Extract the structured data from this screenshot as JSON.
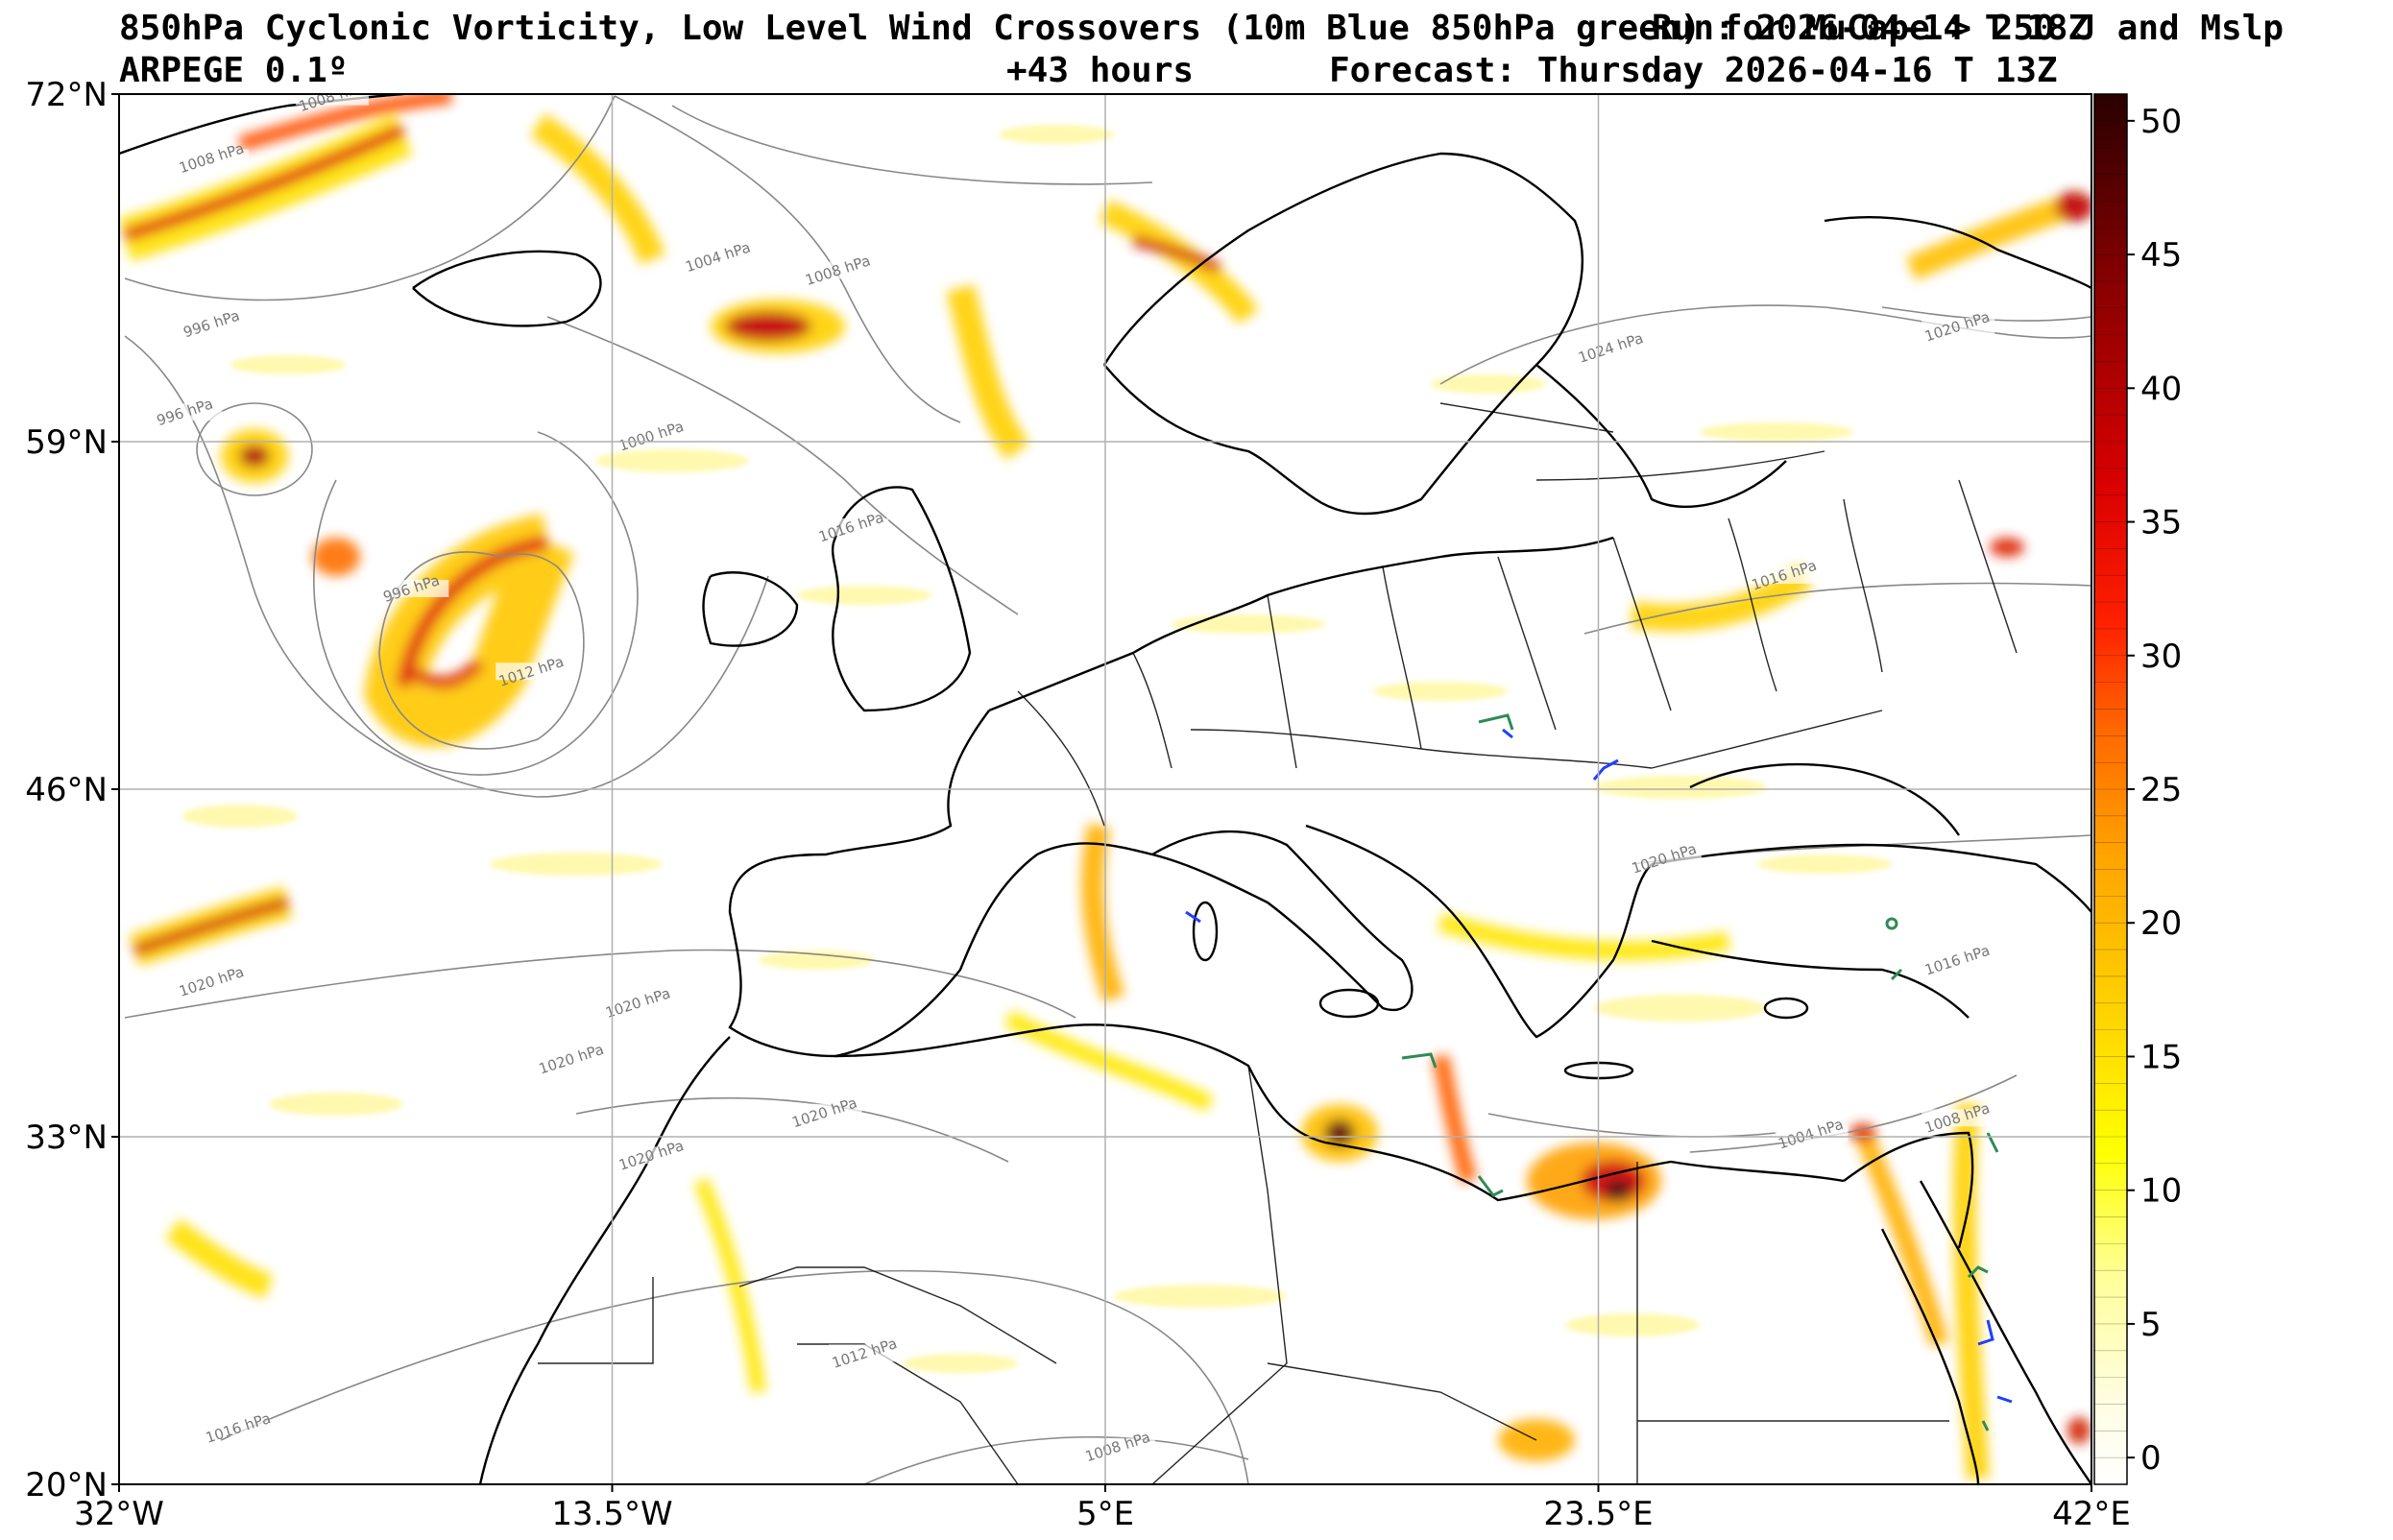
{
  "header": {
    "title_line1": "850hPa Cyclonic Vorticity, Low Level Wind Crossovers (10m Blue 850hPa green) for MuCape > 250 J and Mslp",
    "model": "ARPEGE 0.1º",
    "run": "Run: 2026-04-14 T 18Z",
    "lead_time": "+43 hours",
    "forecast": "Forecast: Thursday 2026-04-16 T 13Z"
  },
  "map": {
    "lat_labels": [
      "72°N",
      "59°N",
      "46°N",
      "33°N",
      "20°N"
    ],
    "lon_labels": [
      "32°W",
      "13.5°W",
      "5°E",
      "23.5°E",
      "42°E"
    ],
    "lat_values": [
      72,
      59,
      46,
      33,
      20
    ],
    "lon_values": [
      -32,
      -13.5,
      5,
      23.5,
      42
    ],
    "extent": {
      "west": -32,
      "east": 42,
      "south": 20,
      "north": 72
    },
    "isobar_labels": [
      {
        "text": "1008 hPa",
        "lon": -28.5,
        "lat": 69.5
      },
      {
        "text": "1008 hPa",
        "lon": -24,
        "lat": 71.8
      },
      {
        "text": "1004 hPa",
        "lon": -9.5,
        "lat": 65.8
      },
      {
        "text": "1008 hPa",
        "lon": -5,
        "lat": 65.3
      },
      {
        "text": "996 hPa",
        "lon": -28.5,
        "lat": 63.3
      },
      {
        "text": "996 hPa",
        "lon": -29.5,
        "lat": 60
      },
      {
        "text": "1000 hPa",
        "lon": -12,
        "lat": 59.1
      },
      {
        "text": "1016 hPa",
        "lon": -4.5,
        "lat": 55.7
      },
      {
        "text": "996 hPa",
        "lon": -21,
        "lat": 53.4
      },
      {
        "text": "1012 hPa",
        "lon": -16.5,
        "lat": 50.3
      },
      {
        "text": "1024 hPa",
        "lon": 24,
        "lat": 62.4
      },
      {
        "text": "1020 hPa",
        "lon": 37,
        "lat": 63.2
      },
      {
        "text": "1016 hPa",
        "lon": 30.5,
        "lat": 53.9
      },
      {
        "text": "1020 hPa",
        "lon": 26,
        "lat": 43.3
      },
      {
        "text": "1016 hPa",
        "lon": 37,
        "lat": 39.5
      },
      {
        "text": "1020 hPa",
        "lon": -28.5,
        "lat": 38.7
      },
      {
        "text": "1020 hPa",
        "lon": -12.5,
        "lat": 37.9
      },
      {
        "text": "1020 hPa",
        "lon": -15,
        "lat": 35.8
      },
      {
        "text": "1020 hPa",
        "lon": -5.5,
        "lat": 33.8
      },
      {
        "text": "1020 hPa",
        "lon": -12,
        "lat": 32.2
      },
      {
        "text": "1004 hPa",
        "lon": 31.5,
        "lat": 33
      },
      {
        "text": "1008 hPa",
        "lon": 37,
        "lat": 33.6
      },
      {
        "text": "1012 hPa",
        "lon": -4,
        "lat": 24.8
      },
      {
        "text": "1016 hPa",
        "lon": -27.5,
        "lat": 22
      },
      {
        "text": "1008 hPa",
        "lon": 5.5,
        "lat": 21.3
      }
    ]
  },
  "colorbar": {
    "ticks": [
      50,
      45,
      40,
      35,
      30,
      25,
      20,
      15,
      10,
      5,
      0
    ],
    "min": -1,
    "max": 51,
    "colors": [
      "#ffffff",
      "#fffde0",
      "#ffff99",
      "#ffff00",
      "#ffd700",
      "#ffa500",
      "#ff6a00",
      "#ff2000",
      "#d90000",
      "#8b0000",
      "#2a0000"
    ]
  }
}
